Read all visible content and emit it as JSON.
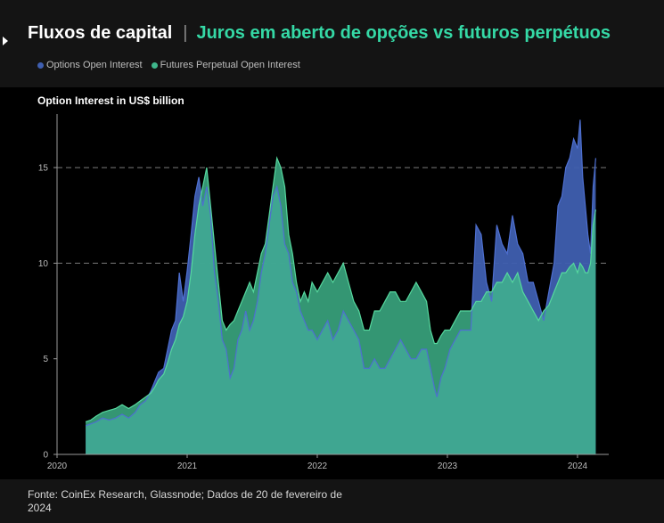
{
  "header": {
    "title": "Fluxos de capital",
    "divider": "|",
    "subtitle": "Juros em aberto de opções vs futuros perpétuos"
  },
  "source": "Fonte: CoinEx Research, Glassnode; Dados de 20 de fevereiro de 2024",
  "colors": {
    "background": "#141414",
    "panel": "#000000",
    "options": "#3f5fb0",
    "futures": "#3fb78c",
    "futures_line": "#56d89e",
    "subtitle": "#35d9a6"
  },
  "chart_data": {
    "type": "area",
    "ylabel": "Option Interest in US$ billion",
    "ylim": [
      0,
      17.8
    ],
    "yticks": [
      0,
      5,
      10,
      15
    ],
    "dashed_gridlines": [
      10,
      15
    ],
    "xlim": [
      2020.0,
      2024.24
    ],
    "xticks": [
      {
        "value": 2020,
        "label": "2020"
      },
      {
        "value": 2021,
        "label": "2021"
      },
      {
        "value": 2022,
        "label": "2022"
      },
      {
        "value": 2023,
        "label": "2023"
      },
      {
        "value": 2024,
        "label": "2024"
      }
    ],
    "legend_position": "top-left",
    "series": [
      {
        "name": "Options Open Interest",
        "color": "#3f5fb0",
        "points": [
          [
            2020.22,
            1.5
          ],
          [
            2020.26,
            1.6
          ],
          [
            2020.3,
            1.7
          ],
          [
            2020.35,
            1.9
          ],
          [
            2020.4,
            1.8
          ],
          [
            2020.45,
            1.9
          ],
          [
            2020.5,
            2.1
          ],
          [
            2020.55,
            1.9
          ],
          [
            2020.6,
            2.2
          ],
          [
            2020.64,
            2.6
          ],
          [
            2020.68,
            2.8
          ],
          [
            2020.72,
            3.3
          ],
          [
            2020.75,
            3.8
          ],
          [
            2020.78,
            4.3
          ],
          [
            2020.82,
            4.5
          ],
          [
            2020.85,
            5.5
          ],
          [
            2020.88,
            6.5
          ],
          [
            2020.91,
            7.0
          ],
          [
            2020.94,
            9.5
          ],
          [
            2020.97,
            8.0
          ],
          [
            2021.0,
            9.6
          ],
          [
            2021.03,
            11.5
          ],
          [
            2021.06,
            13.5
          ],
          [
            2021.09,
            14.5
          ],
          [
            2021.12,
            13.0
          ],
          [
            2021.15,
            14.0
          ],
          [
            2021.18,
            12.5
          ],
          [
            2021.21,
            9.5
          ],
          [
            2021.24,
            8.0
          ],
          [
            2021.27,
            6.0
          ],
          [
            2021.3,
            5.5
          ],
          [
            2021.33,
            4.0
          ],
          [
            2021.36,
            4.5
          ],
          [
            2021.39,
            6.0
          ],
          [
            2021.42,
            6.5
          ],
          [
            2021.45,
            7.5
          ],
          [
            2021.48,
            6.5
          ],
          [
            2021.51,
            7.0
          ],
          [
            2021.54,
            8.0
          ],
          [
            2021.57,
            9.5
          ],
          [
            2021.6,
            10.5
          ],
          [
            2021.63,
            12.0
          ],
          [
            2021.66,
            13.5
          ],
          [
            2021.69,
            14.0
          ],
          [
            2021.72,
            13.0
          ],
          [
            2021.75,
            11.0
          ],
          [
            2021.78,
            10.5
          ],
          [
            2021.81,
            9.0
          ],
          [
            2021.84,
            8.5
          ],
          [
            2021.87,
            7.5
          ],
          [
            2021.9,
            7.0
          ],
          [
            2021.93,
            6.5
          ],
          [
            2021.96,
            6.5
          ],
          [
            2022.0,
            6.0
          ],
          [
            2022.04,
            6.5
          ],
          [
            2022.08,
            7.0
          ],
          [
            2022.12,
            6.0
          ],
          [
            2022.16,
            6.5
          ],
          [
            2022.2,
            7.5
          ],
          [
            2022.24,
            7.0
          ],
          [
            2022.28,
            6.5
          ],
          [
            2022.32,
            6.0
          ],
          [
            2022.36,
            4.5
          ],
          [
            2022.4,
            4.5
          ],
          [
            2022.44,
            5.0
          ],
          [
            2022.48,
            4.5
          ],
          [
            2022.52,
            4.5
          ],
          [
            2022.56,
            5.0
          ],
          [
            2022.6,
            5.5
          ],
          [
            2022.64,
            6.0
          ],
          [
            2022.68,
            5.5
          ],
          [
            2022.72,
            5.0
          ],
          [
            2022.76,
            5.0
          ],
          [
            2022.8,
            5.5
          ],
          [
            2022.84,
            5.5
          ],
          [
            2022.87,
            4.5
          ],
          [
            2022.9,
            3.5
          ],
          [
            2022.92,
            3.0
          ],
          [
            2022.95,
            4.0
          ],
          [
            2022.98,
            4.5
          ],
          [
            2023.02,
            5.5
          ],
          [
            2023.06,
            6.0
          ],
          [
            2023.1,
            6.5
          ],
          [
            2023.14,
            6.5
          ],
          [
            2023.18,
            6.5
          ],
          [
            2023.22,
            12.0
          ],
          [
            2023.26,
            11.5
          ],
          [
            2023.3,
            9.0
          ],
          [
            2023.34,
            8.0
          ],
          [
            2023.38,
            12.0
          ],
          [
            2023.42,
            11.0
          ],
          [
            2023.46,
            10.5
          ],
          [
            2023.5,
            12.5
          ],
          [
            2023.54,
            11.0
          ],
          [
            2023.58,
            10.5
          ],
          [
            2023.62,
            9.0
          ],
          [
            2023.66,
            9.0
          ],
          [
            2023.7,
            8.0
          ],
          [
            2023.74,
            7.0
          ],
          [
            2023.78,
            8.5
          ],
          [
            2023.82,
            10.0
          ],
          [
            2023.85,
            13.0
          ],
          [
            2023.88,
            13.5
          ],
          [
            2023.91,
            15.0
          ],
          [
            2023.94,
            15.5
          ],
          [
            2023.97,
            16.5
          ],
          [
            2024.0,
            16.0
          ],
          [
            2024.02,
            17.5
          ],
          [
            2024.04,
            14.5
          ],
          [
            2024.06,
            13.0
          ],
          [
            2024.08,
            11.5
          ],
          [
            2024.1,
            10.5
          ],
          [
            2024.12,
            14.0
          ],
          [
            2024.14,
            15.5
          ]
        ]
      },
      {
        "name": "Futures Perpetual Open Interest",
        "color": "#3fb78c",
        "points": [
          [
            2020.22,
            1.7
          ],
          [
            2020.26,
            1.8
          ],
          [
            2020.3,
            2.0
          ],
          [
            2020.35,
            2.2
          ],
          [
            2020.4,
            2.3
          ],
          [
            2020.45,
            2.4
          ],
          [
            2020.5,
            2.6
          ],
          [
            2020.55,
            2.4
          ],
          [
            2020.6,
            2.6
          ],
          [
            2020.64,
            2.8
          ],
          [
            2020.68,
            3.0
          ],
          [
            2020.72,
            3.2
          ],
          [
            2020.75,
            3.5
          ],
          [
            2020.78,
            3.9
          ],
          [
            2020.82,
            4.2
          ],
          [
            2020.85,
            4.8
          ],
          [
            2020.88,
            5.5
          ],
          [
            2020.91,
            6.0
          ],
          [
            2020.94,
            6.8
          ],
          [
            2020.97,
            7.2
          ],
          [
            2021.0,
            8.0
          ],
          [
            2021.03,
            9.5
          ],
          [
            2021.06,
            11.5
          ],
          [
            2021.09,
            13.0
          ],
          [
            2021.12,
            14.0
          ],
          [
            2021.15,
            15.0
          ],
          [
            2021.18,
            13.0
          ],
          [
            2021.21,
            11.0
          ],
          [
            2021.24,
            9.0
          ],
          [
            2021.27,
            7.0
          ],
          [
            2021.3,
            6.5
          ],
          [
            2021.33,
            6.8
          ],
          [
            2021.36,
            7.0
          ],
          [
            2021.39,
            7.5
          ],
          [
            2021.42,
            8.0
          ],
          [
            2021.45,
            8.5
          ],
          [
            2021.48,
            9.0
          ],
          [
            2021.51,
            8.5
          ],
          [
            2021.54,
            9.5
          ],
          [
            2021.57,
            10.5
          ],
          [
            2021.6,
            11.0
          ],
          [
            2021.63,
            12.5
          ],
          [
            2021.66,
            14.0
          ],
          [
            2021.69,
            15.5
          ],
          [
            2021.72,
            15.0
          ],
          [
            2021.75,
            14.0
          ],
          [
            2021.78,
            11.5
          ],
          [
            2021.81,
            10.5
          ],
          [
            2021.84,
            9.0
          ],
          [
            2021.87,
            8.0
          ],
          [
            2021.9,
            8.5
          ],
          [
            2021.93,
            8.0
          ],
          [
            2021.96,
            9.0
          ],
          [
            2022.0,
            8.5
          ],
          [
            2022.04,
            9.0
          ],
          [
            2022.08,
            9.5
          ],
          [
            2022.12,
            9.0
          ],
          [
            2022.16,
            9.5
          ],
          [
            2022.2,
            10.0
          ],
          [
            2022.24,
            9.0
          ],
          [
            2022.28,
            8.0
          ],
          [
            2022.32,
            7.5
          ],
          [
            2022.36,
            6.5
          ],
          [
            2022.4,
            6.5
          ],
          [
            2022.44,
            7.5
          ],
          [
            2022.48,
            7.5
          ],
          [
            2022.52,
            8.0
          ],
          [
            2022.56,
            8.5
          ],
          [
            2022.6,
            8.5
          ],
          [
            2022.64,
            8.0
          ],
          [
            2022.68,
            8.0
          ],
          [
            2022.72,
            8.5
          ],
          [
            2022.76,
            9.0
          ],
          [
            2022.8,
            8.5
          ],
          [
            2022.84,
            8.0
          ],
          [
            2022.87,
            6.5
          ],
          [
            2022.9,
            5.8
          ],
          [
            2022.92,
            5.8
          ],
          [
            2022.95,
            6.2
          ],
          [
            2022.98,
            6.5
          ],
          [
            2023.02,
            6.5
          ],
          [
            2023.06,
            7.0
          ],
          [
            2023.1,
            7.5
          ],
          [
            2023.14,
            7.5
          ],
          [
            2023.18,
            7.5
          ],
          [
            2023.22,
            8.0
          ],
          [
            2023.26,
            8.0
          ],
          [
            2023.3,
            8.5
          ],
          [
            2023.34,
            8.5
          ],
          [
            2023.38,
            9.0
          ],
          [
            2023.42,
            9.0
          ],
          [
            2023.46,
            9.5
          ],
          [
            2023.5,
            9.0
          ],
          [
            2023.54,
            9.5
          ],
          [
            2023.58,
            8.5
          ],
          [
            2023.62,
            8.0
          ],
          [
            2023.66,
            7.5
          ],
          [
            2023.7,
            7.0
          ],
          [
            2023.74,
            7.5
          ],
          [
            2023.78,
            7.8
          ],
          [
            2023.82,
            8.5
          ],
          [
            2023.85,
            9.0
          ],
          [
            2023.88,
            9.5
          ],
          [
            2023.91,
            9.5
          ],
          [
            2023.94,
            9.8
          ],
          [
            2023.97,
            10.0
          ],
          [
            2024.0,
            9.5
          ],
          [
            2024.02,
            10.0
          ],
          [
            2024.04,
            9.8
          ],
          [
            2024.06,
            9.5
          ],
          [
            2024.08,
            9.5
          ],
          [
            2024.1,
            10.0
          ],
          [
            2024.12,
            12.0
          ],
          [
            2024.14,
            12.8
          ]
        ]
      }
    ]
  }
}
